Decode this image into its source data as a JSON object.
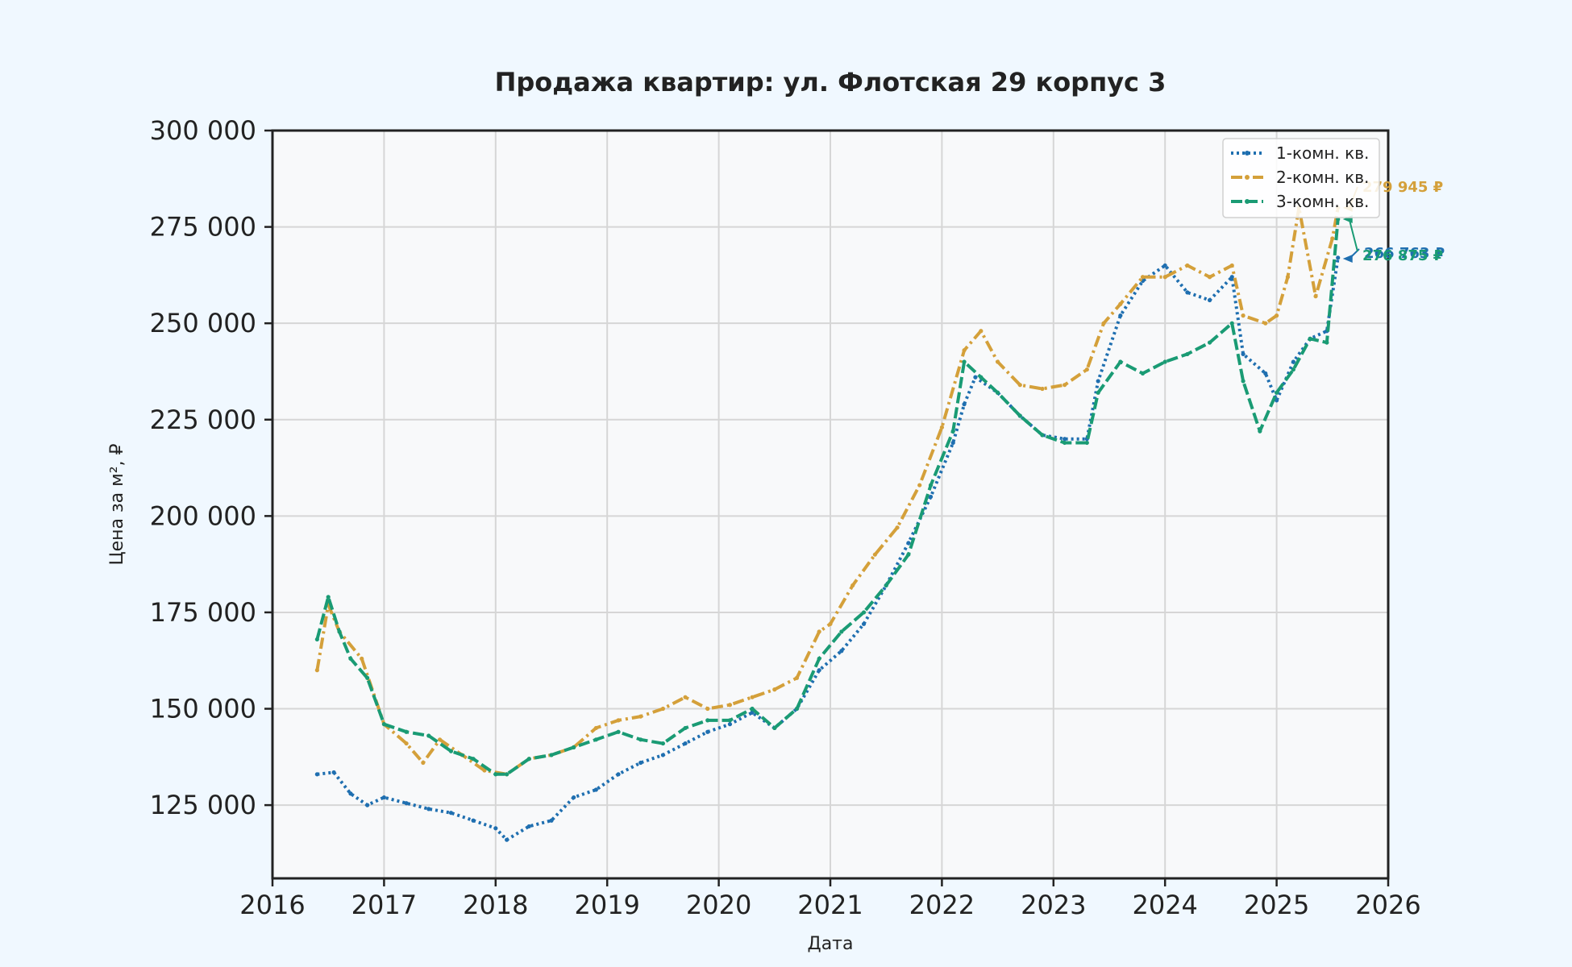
{
  "chart_data": {
    "type": "line",
    "title": "Продажа квартир: ул. Флотская 29 корпус 3",
    "xlabel": "Дата",
    "ylabel": "Цена за м², ₽",
    "xlim": [
      2016.0,
      2026.0
    ],
    "ylim": [
      106000,
      300000
    ],
    "x_ticks": [
      2016,
      2017,
      2018,
      2019,
      2020,
      2021,
      2022,
      2023,
      2024,
      2025,
      2026
    ],
    "x_tick_labels": [
      "2016",
      "2017",
      "2018",
      "2019",
      "2020",
      "2021",
      "2022",
      "2023",
      "2024",
      "2025",
      "2026"
    ],
    "y_ticks": [
      125000,
      150000,
      175000,
      200000,
      225000,
      250000,
      275000,
      300000
    ],
    "y_tick_labels": [
      "125 000",
      "150 000",
      "175 000",
      "200 000",
      "225 000",
      "250 000",
      "275 000",
      "300 000"
    ],
    "grid": true,
    "legend_position": "top-right",
    "series": [
      {
        "name": "1-комн. кв.",
        "color": "#1f6fb0",
        "style": "dotted",
        "x": [
          2016.4,
          2016.55,
          2016.7,
          2016.85,
          2017.0,
          2017.2,
          2017.4,
          2017.6,
          2017.8,
          2018.0,
          2018.1,
          2018.3,
          2018.5,
          2018.7,
          2018.9,
          2019.1,
          2019.3,
          2019.5,
          2019.7,
          2019.9,
          2020.1,
          2020.3,
          2020.5,
          2020.7,
          2020.9,
          2021.1,
          2021.3,
          2021.5,
          2021.7,
          2021.9,
          2022.1,
          2022.2,
          2022.3,
          2022.5,
          2022.7,
          2022.9,
          2023.1,
          2023.3,
          2023.4,
          2023.6,
          2023.8,
          2024.0,
          2024.2,
          2024.4,
          2024.6,
          2024.7,
          2024.9,
          2025.0,
          2025.15,
          2025.3,
          2025.45,
          2025.55
        ],
        "y": [
          133000,
          133500,
          128000,
          125000,
          127000,
          125500,
          124000,
          123000,
          121000,
          119000,
          116000,
          119500,
          121000,
          127000,
          129000,
          133000,
          136000,
          138000,
          141000,
          144000,
          146000,
          149000,
          145000,
          150000,
          160000,
          165000,
          172000,
          182000,
          193000,
          205000,
          219000,
          229000,
          236000,
          232000,
          226000,
          221000,
          220000,
          220000,
          235000,
          252000,
          261000,
          265000,
          258000,
          256000,
          262000,
          242000,
          237000,
          230000,
          240000,
          246000,
          248000,
          267000
        ]
      },
      {
        "name": "2-комн. кв.",
        "color": "#d4a03a",
        "style": "dashdot",
        "x": [
          2016.4,
          2016.5,
          2016.6,
          2016.8,
          2017.0,
          2017.2,
          2017.35,
          2017.5,
          2017.7,
          2017.9,
          2018.1,
          2018.3,
          2018.5,
          2018.7,
          2018.9,
          2019.1,
          2019.3,
          2019.5,
          2019.7,
          2019.9,
          2020.1,
          2020.3,
          2020.5,
          2020.7,
          2020.9,
          2021.0,
          2021.2,
          2021.4,
          2021.6,
          2021.8,
          2022.0,
          2022.2,
          2022.35,
          2022.5,
          2022.7,
          2022.9,
          2023.1,
          2023.3,
          2023.45,
          2023.6,
          2023.8,
          2024.0,
          2024.2,
          2024.4,
          2024.6,
          2024.7,
          2024.9,
          2025.0,
          2025.1,
          2025.2,
          2025.35,
          2025.5,
          2025.55
        ],
        "y": [
          160000,
          177000,
          170000,
          163000,
          146000,
          141000,
          136000,
          142000,
          138000,
          134000,
          133000,
          137000,
          138000,
          140000,
          145000,
          147000,
          148000,
          150000,
          153000,
          150000,
          151000,
          153000,
          155000,
          158000,
          170000,
          172000,
          182000,
          190000,
          197000,
          208000,
          223000,
          243000,
          248000,
          240000,
          234000,
          233000,
          234000,
          238000,
          250000,
          255000,
          262000,
          262000,
          265000,
          262000,
          265000,
          252000,
          250000,
          252000,
          262000,
          280000,
          257000,
          272000,
          279945
        ]
      },
      {
        "name": "3-комн. кв.",
        "color": "#1a9b74",
        "style": "dashed",
        "x": [
          2016.4,
          2016.5,
          2016.6,
          2016.7,
          2016.85,
          2017.0,
          2017.2,
          2017.4,
          2017.6,
          2017.8,
          2018.0,
          2018.1,
          2018.3,
          2018.5,
          2018.7,
          2018.9,
          2019.1,
          2019.3,
          2019.5,
          2019.7,
          2019.9,
          2020.1,
          2020.3,
          2020.5,
          2020.7,
          2020.9,
          2021.1,
          2021.3,
          2021.5,
          2021.7,
          2021.9,
          2022.1,
          2022.2,
          2022.35,
          2022.5,
          2022.7,
          2022.9,
          2023.1,
          2023.3,
          2023.4,
          2023.6,
          2023.8,
          2024.0,
          2024.2,
          2024.4,
          2024.6,
          2024.7,
          2024.85,
          2025.0,
          2025.15,
          2025.3,
          2025.45,
          2025.55
        ],
        "y": [
          168000,
          179000,
          170000,
          163000,
          158000,
          146000,
          144000,
          143000,
          139000,
          137000,
          133000,
          133000,
          137000,
          138000,
          140000,
          142000,
          144000,
          142000,
          141000,
          145000,
          147000,
          147000,
          150000,
          145000,
          150000,
          163000,
          170000,
          175000,
          182000,
          190000,
          208000,
          222000,
          240000,
          236000,
          232000,
          226000,
          221000,
          219000,
          219000,
          232000,
          240000,
          237000,
          240000,
          242000,
          245000,
          250000,
          235000,
          222000,
          232000,
          238000,
          246000,
          245000,
          277000
        ]
      }
    ],
    "end_labels": [
      {
        "series": "2-комн. кв.",
        "text": "279 945 ₽",
        "color": "#d4a03a",
        "x": 2025.55,
        "y": 279945
      },
      {
        "series": "1-комн. кв.",
        "text": "266 763 ₽",
        "color": "#1f6fb0",
        "x": 2025.55,
        "y": 266763
      },
      {
        "series": "3-комн. кв.",
        "text": "276 875 ₽",
        "color": "#1a9b74",
        "x": 2025.55,
        "y": 277000
      }
    ]
  }
}
